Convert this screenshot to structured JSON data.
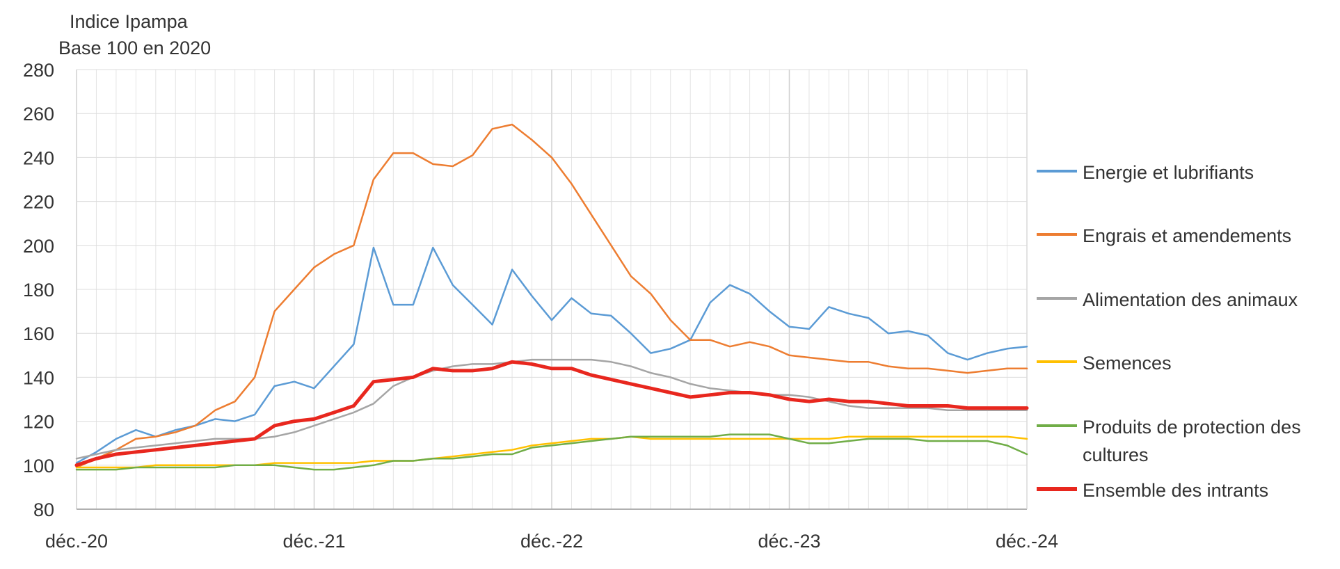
{
  "chart_data": {
    "type": "line",
    "ylabel": [
      "Indice Ipampa",
      "Base 100 en 2020"
    ],
    "ylim": [
      80,
      280
    ],
    "yticks": [
      80,
      100,
      120,
      140,
      160,
      180,
      200,
      220,
      240,
      260,
      280
    ],
    "x_range": [
      "déc.-20",
      "déc.-24"
    ],
    "xtick_labels": [
      "déc.-20",
      "déc.-21",
      "déc.-22",
      "déc.-23",
      "déc.-24"
    ],
    "x": [
      "déc.-20",
      "janv.-21",
      "févr.-21",
      "mars-21",
      "avr.-21",
      "mai-21",
      "juin-21",
      "juil.-21",
      "août-21",
      "sept.-21",
      "oct.-21",
      "nov.-21",
      "déc.-21",
      "janv.-22",
      "févr.-22",
      "mars-22",
      "avr.-22",
      "mai-22",
      "juin-22",
      "juil.-22",
      "août-22",
      "sept.-22",
      "oct.-22",
      "nov.-22",
      "déc.-22",
      "janv.-23",
      "févr.-23",
      "mars-23",
      "avr.-23",
      "mai-23",
      "juin-23",
      "juil.-23",
      "août-23",
      "sept.-23",
      "oct.-23",
      "nov.-23",
      "déc.-23",
      "janv.-24",
      "févr.-24",
      "mars-24",
      "avr.-24",
      "mai-24",
      "juin-24",
      "juil.-24",
      "août-24",
      "sept.-24",
      "oct.-24",
      "nov.-24",
      "déc.-24"
    ],
    "grid": "vertical monthly and horizontal major",
    "legend_position": "right",
    "series": [
      {
        "name": "Energie et lubrifiants",
        "color": "#5B9BD5",
        "width": 2.5,
        "values": [
          101,
          106,
          112,
          116,
          113,
          116,
          118,
          121,
          120,
          123,
          136,
          138,
          135,
          145,
          155,
          199,
          173,
          173,
          199,
          182,
          173,
          164,
          189,
          177,
          166,
          176,
          169,
          168,
          160,
          151,
          153,
          157,
          174,
          182,
          178,
          170,
          163,
          162,
          172,
          169,
          167,
          160,
          161,
          159,
          151,
          148,
          151,
          153,
          154
        ]
      },
      {
        "name": "Engrais et amendements",
        "color": "#ED7D31",
        "width": 2.5,
        "values": [
          99,
          103,
          107,
          112,
          113,
          115,
          118,
          125,
          129,
          140,
          170,
          180,
          190,
          196,
          200,
          230,
          242,
          242,
          237,
          236,
          241,
          253,
          255,
          248,
          240,
          228,
          214,
          200,
          186,
          178,
          166,
          157,
          157,
          154,
          156,
          154,
          150,
          149,
          148,
          147,
          147,
          145,
          144,
          144,
          143,
          142,
          143,
          144,
          144
        ]
      },
      {
        "name": "Alimentation des animaux",
        "color": "#A5A5A5",
        "width": 2.5,
        "values": [
          103,
          105,
          107,
          108,
          109,
          110,
          111,
          112,
          112,
          112,
          113,
          115,
          118,
          121,
          124,
          128,
          136,
          140,
          143,
          145,
          146,
          146,
          147,
          148,
          148,
          148,
          148,
          147,
          145,
          142,
          140,
          137,
          135,
          134,
          133,
          132,
          132,
          131,
          129,
          127,
          126,
          126,
          126,
          126,
          125,
          125,
          125,
          125,
          125
        ]
      },
      {
        "name": "Semences",
        "color": "#FFC000",
        "width": 2.5,
        "values": [
          99,
          99,
          99,
          99,
          100,
          100,
          100,
          100,
          100,
          100,
          101,
          101,
          101,
          101,
          101,
          102,
          102,
          102,
          103,
          104,
          105,
          106,
          107,
          109,
          110,
          111,
          112,
          112,
          113,
          112,
          112,
          112,
          112,
          112,
          112,
          112,
          112,
          112,
          112,
          113,
          113,
          113,
          113,
          113,
          113,
          113,
          113,
          113,
          112
        ]
      },
      {
        "name": "Produits de protection des cultures",
        "color": "#70AD47",
        "width": 2.5,
        "values": [
          98,
          98,
          98,
          99,
          99,
          99,
          99,
          99,
          100,
          100,
          100,
          99,
          98,
          98,
          99,
          100,
          102,
          102,
          103,
          103,
          104,
          105,
          105,
          108,
          109,
          110,
          111,
          112,
          113,
          113,
          113,
          113,
          113,
          114,
          114,
          114,
          112,
          110,
          110,
          111,
          112,
          112,
          112,
          111,
          111,
          111,
          111,
          109,
          105
        ]
      },
      {
        "name": "Ensemble des intrants",
        "color": "#E8271E",
        "width": 5,
        "values": [
          100,
          103,
          105,
          106,
          107,
          108,
          109,
          110,
          111,
          112,
          118,
          120,
          121,
          124,
          127,
          138,
          139,
          140,
          144,
          143,
          143,
          144,
          147,
          146,
          144,
          144,
          141,
          139,
          137,
          135,
          133,
          131,
          132,
          133,
          133,
          132,
          130,
          129,
          130,
          129,
          129,
          128,
          127,
          127,
          127,
          126,
          126,
          126,
          126
        ]
      }
    ]
  }
}
